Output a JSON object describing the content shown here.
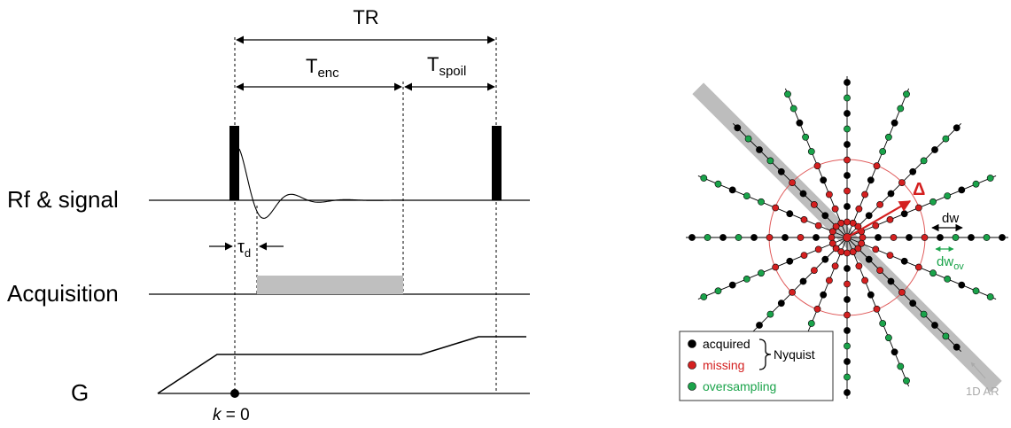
{
  "left_panel": {
    "tr_label": "TR",
    "tenc_main": "T",
    "tenc_sub": "enc",
    "tspoil_main": "T",
    "tspoil_sub": "spoil",
    "rf_label": "Rf & signal",
    "tau_main": "τ",
    "tau_sub": "d",
    "acq_label": "Acquisition",
    "g_label": "G",
    "k_var": "k",
    "k_eq": " = 0"
  },
  "right_panel": {
    "delta_label": "Δ",
    "dw_label": "dw",
    "dwov_main": "dw",
    "dwov_sub": "ov",
    "ar_label": "1D AR",
    "legend": {
      "acquired": "acquired",
      "missing": "missing",
      "oversampling": "oversampling",
      "nyquist": "Nyquist"
    },
    "colors": {
      "acquired": "#000000",
      "missing": "#d42020",
      "oversampling": "#1aa34a",
      "circle": "#e05a5a",
      "band": "#bdbdbd",
      "acquisition_bar": "#bfbfbf"
    }
  }
}
